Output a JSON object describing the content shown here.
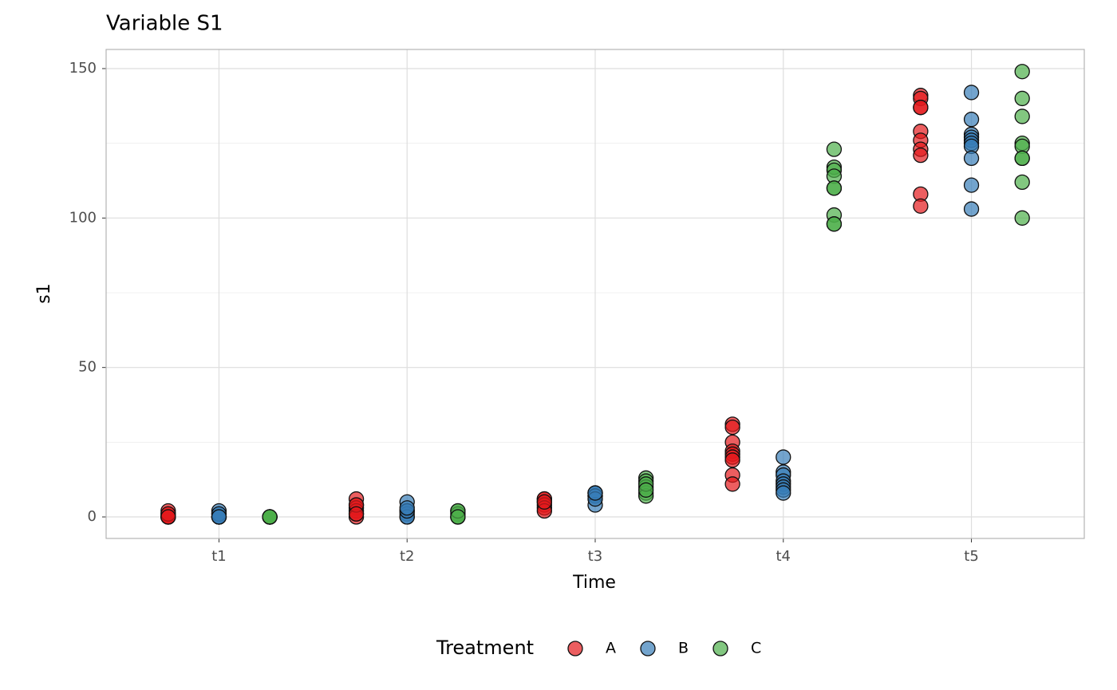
{
  "chart_data": {
    "type": "scatter",
    "title": "Variable S1",
    "x_label": "Time",
    "y_label": "s1",
    "categories": [
      "t1",
      "t2",
      "t3",
      "t4",
      "t5"
    ],
    "legend_title": "Treatment",
    "legend_position": "bottom",
    "grid": true,
    "ylim": [
      -7.2,
      156.4
    ],
    "yticks": [
      0,
      50,
      100,
      150
    ],
    "minor_yticks": [
      25,
      75,
      125
    ],
    "series": [
      {
        "name": "A",
        "color": "#e41a1c",
        "values": [
          [
            0,
            0,
            1,
            2,
            0,
            0,
            1,
            0
          ],
          [
            6,
            4,
            3,
            2,
            1,
            0,
            4,
            1
          ],
          [
            6,
            5,
            6,
            4,
            3,
            2,
            5
          ],
          [
            31,
            30,
            25,
            22,
            21,
            20,
            19,
            14,
            11
          ],
          [
            141,
            140,
            137,
            137,
            129,
            126,
            123,
            121,
            108,
            104
          ]
        ]
      },
      {
        "name": "B",
        "color": "#377eb8",
        "values": [
          [
            0,
            0,
            1,
            2,
            0,
            1,
            0,
            0
          ],
          [
            5,
            2,
            1,
            0,
            0,
            2,
            3
          ],
          [
            8,
            7,
            8,
            7,
            4,
            6,
            8
          ],
          [
            20,
            15,
            14,
            12,
            11,
            10,
            9,
            8
          ],
          [
            142,
            133,
            128,
            127,
            126,
            125,
            124,
            120,
            111,
            103
          ]
        ]
      },
      {
        "name": "C",
        "color": "#4daf4a",
        "values": [
          [
            0,
            0,
            0,
            0,
            0,
            0,
            0,
            0
          ],
          [
            2,
            1,
            0,
            0,
            2,
            0
          ],
          [
            13,
            12,
            10,
            8,
            7,
            11,
            9
          ],
          [
            123,
            117,
            116,
            114,
            110,
            110,
            101,
            98,
            98
          ],
          [
            149,
            140,
            134,
            125,
            124,
            120,
            120,
            112,
            100
          ]
        ]
      }
    ]
  }
}
